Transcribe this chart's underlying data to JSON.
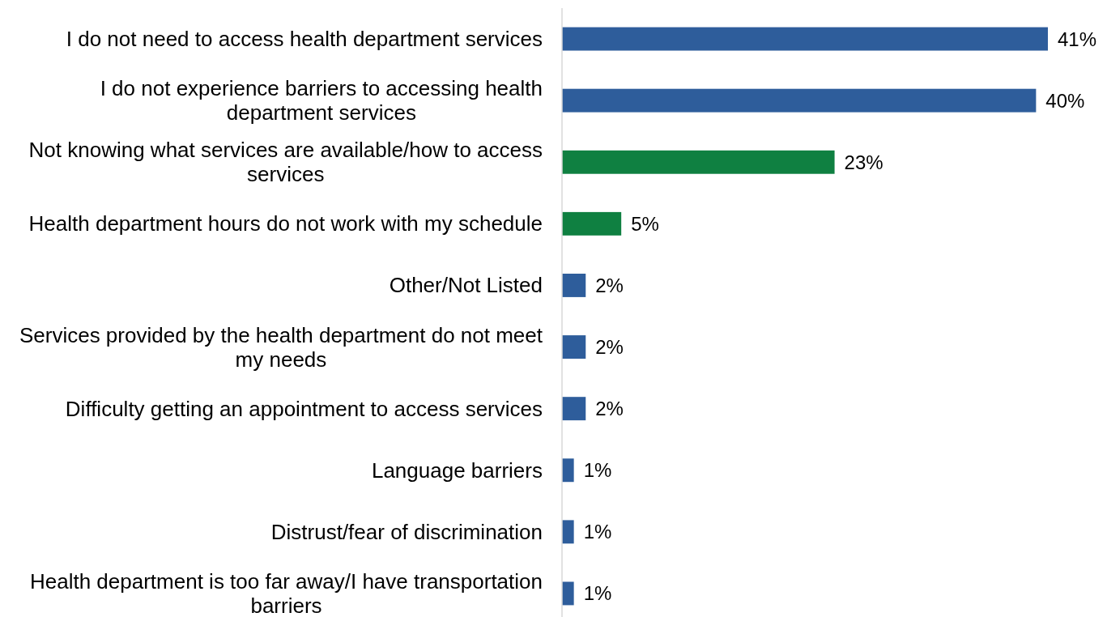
{
  "chart_data": {
    "type": "bar",
    "orientation": "horizontal",
    "categories": [
      "I do not need to access health department services",
      "I do not experience barriers to accessing health department services",
      "Not knowing what services are available/how to access services",
      "Health department hours do not work with my schedule",
      "Other/Not Listed",
      "Services provided by the health department do not meet my needs",
      "Difficulty getting an appointment to access services",
      "Language barriers",
      "Distrust/fear of discrimination",
      "Health department is too far away/I have transportation barriers"
    ],
    "values": [
      41,
      40,
      23,
      5,
      2,
      2,
      2,
      1,
      1,
      1
    ],
    "colors": [
      "#2e5d9b",
      "#2e5d9b",
      "#0f8041",
      "#0f8041",
      "#2e5d9b",
      "#2e5d9b",
      "#2e5d9b",
      "#2e5d9b",
      "#2e5d9b",
      "#2e5d9b"
    ],
    "value_labels": [
      "41%",
      "40%",
      "23%",
      "5%",
      "2%",
      "2%",
      "2%",
      "1%",
      "1%",
      "1%"
    ],
    "data_labels": false
  }
}
